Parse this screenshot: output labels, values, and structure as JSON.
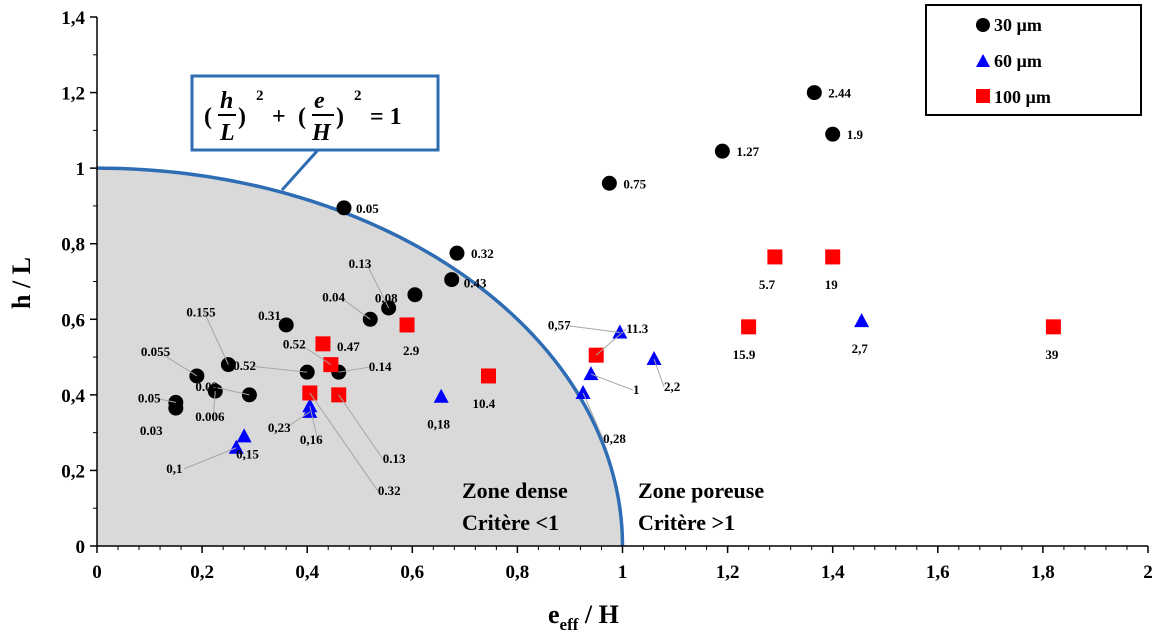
{
  "chart_data": {
    "type": "scatter",
    "xlabel": "e",
    "xlabel_sub": "eff",
    "xlabel_suffix": " / H",
    "ylabel": "h / L",
    "xlim": [
      0,
      2
    ],
    "ylim": [
      0,
      1.4
    ],
    "x_ticks": [
      0,
      0.2,
      0.4,
      0.6,
      0.8,
      1,
      1.2,
      1.4,
      1.6,
      1.8,
      2
    ],
    "x_tick_labels": [
      "0",
      "0,2",
      "0,4",
      "0,6",
      "0,8",
      "1",
      "1,2",
      "1,4",
      "1,6",
      "1,8",
      "2"
    ],
    "y_ticks": [
      0,
      0.2,
      0.4,
      0.6,
      0.8,
      1,
      1.2,
      1.4
    ],
    "y_tick_labels": [
      "0",
      "0,2",
      "0,4",
      "0,6",
      "0,8",
      "1",
      "1,2",
      "1,4"
    ],
    "grid": false,
    "legend_position": "top-right",
    "boundary_curve": "quarter-circle radius 1",
    "colors": {
      "series_30": "#000000",
      "series_60": "#0000ff",
      "series_100": "#ff0000",
      "curve": "#2e6db4",
      "dense_fill": "#d9d9d9"
    },
    "formula": {
      "h": "h",
      "L": "L",
      "e": "e",
      "H": "H",
      "exp": "2",
      "plus": "+",
      "eq": "= 1"
    },
    "zones": {
      "dense_title": "Zone dense",
      "dense_criterion": "Critère <1",
      "porous_title": "Zone poreuse",
      "porous_criterion": "Critère >1"
    },
    "series": [
      {
        "name": "30 µm",
        "marker": "circle",
        "points": [
          {
            "x": 0.15,
            "y": 0.38,
            "label": "0.05"
          },
          {
            "x": 0.15,
            "y": 0.365,
            "label": "0.03"
          },
          {
            "x": 0.19,
            "y": 0.45,
            "label": "0.055"
          },
          {
            "x": 0.225,
            "y": 0.41,
            "label": "0.006"
          },
          {
            "x": 0.25,
            "y": 0.48,
            "label": "0.155"
          },
          {
            "x": 0.29,
            "y": 0.4,
            "label": "0.03"
          },
          {
            "x": 0.36,
            "y": 0.585,
            "label": "0.31"
          },
          {
            "x": 0.4,
            "y": 0.46,
            "label": "0.52"
          },
          {
            "x": 0.46,
            "y": 0.46,
            "label": "0.14"
          },
          {
            "x": 0.47,
            "y": 0.895,
            "label": "0.05"
          },
          {
            "x": 0.52,
            "y": 0.6,
            "label": "0.04"
          },
          {
            "x": 0.555,
            "y": 0.63,
            "label": "0.13"
          },
          {
            "x": 0.605,
            "y": 0.665,
            "label": "0.08"
          },
          {
            "x": 0.675,
            "y": 0.705,
            "label": "0.43"
          },
          {
            "x": 0.685,
            "y": 0.775,
            "label": "0.32"
          },
          {
            "x": 0.975,
            "y": 0.96,
            "label": "0.75"
          },
          {
            "x": 1.19,
            "y": 1.045,
            "label": "1.27"
          },
          {
            "x": 1.365,
            "y": 1.2,
            "label": "2.44"
          },
          {
            "x": 1.4,
            "y": 1.09,
            "label": "1.9"
          }
        ]
      },
      {
        "name": "60 µm",
        "marker": "triangle",
        "points": [
          {
            "x": 0.265,
            "y": 0.26,
            "label": "0,1"
          },
          {
            "x": 0.28,
            "y": 0.29,
            "label": "0,15"
          },
          {
            "x": 0.405,
            "y": 0.355,
            "label": "0,23"
          },
          {
            "x": 0.405,
            "y": 0.37,
            "label": "0,16"
          },
          {
            "x": 0.655,
            "y": 0.395,
            "label": "0,18"
          },
          {
            "x": 0.925,
            "y": 0.405,
            "label": "0,28"
          },
          {
            "x": 0.94,
            "y": 0.455,
            "label": "1"
          },
          {
            "x": 0.995,
            "y": 0.565,
            "label": "0,57"
          },
          {
            "x": 1.06,
            "y": 0.495,
            "label": "2,2"
          },
          {
            "x": 1.455,
            "y": 0.595,
            "label": "2,7"
          }
        ]
      },
      {
        "name": "100 µm",
        "marker": "square",
        "points": [
          {
            "x": 0.405,
            "y": 0.405,
            "label": "0.32"
          },
          {
            "x": 0.46,
            "y": 0.4,
            "label": "0.13"
          },
          {
            "x": 0.43,
            "y": 0.535,
            "label": "0.47"
          },
          {
            "x": 0.445,
            "y": 0.48,
            "label": "0.52"
          },
          {
            "x": 0.59,
            "y": 0.585,
            "label": "2.9"
          },
          {
            "x": 0.745,
            "y": 0.45,
            "label": "10.4"
          },
          {
            "x": 0.95,
            "y": 0.505,
            "label": "11.3"
          },
          {
            "x": 1.24,
            "y": 0.58,
            "label": "15.9"
          },
          {
            "x": 1.29,
            "y": 0.765,
            "label": "5.7"
          },
          {
            "x": 1.4,
            "y": 0.765,
            "label": "19"
          },
          {
            "x": 1.82,
            "y": 0.58,
            "label": "39"
          }
        ]
      }
    ]
  }
}
